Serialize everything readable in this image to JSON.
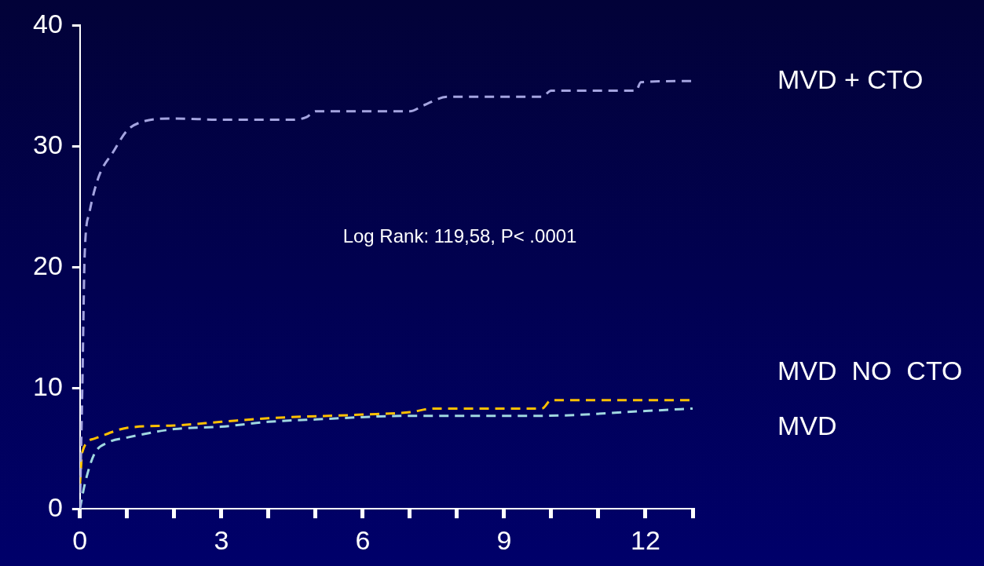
{
  "chart_data": {
    "type": "line",
    "xlim": [
      0,
      13
    ],
    "ylim": [
      0,
      40
    ],
    "xticks": [
      0,
      {
        "value": 1,
        "label": null
      },
      {
        "value": 2,
        "label": null
      },
      3,
      {
        "value": 4,
        "label": null
      },
      {
        "value": 5,
        "label": null
      },
      6,
      {
        "value": 7,
        "label": null
      },
      {
        "value": 8,
        "label": null
      },
      9,
      {
        "value": 10,
        "label": null
      },
      {
        "value": 11,
        "label": null
      },
      12,
      {
        "value": 13,
        "label": null
      }
    ],
    "yticks": [
      0,
      10,
      20,
      30,
      40
    ],
    "grid": false,
    "legend": false,
    "marker": "none",
    "line_style": "dashed",
    "annotations": [
      "Log Rank: 119,58, P< .0001"
    ],
    "series": [
      {
        "name": "MVD + CTO",
        "color": "#a4a4e0",
        "x": [
          0,
          0.05,
          0.1,
          0.2,
          0.4,
          0.7,
          1.0,
          1.3,
          2,
          3,
          4.5,
          4.8,
          5,
          7,
          7.3,
          7.8,
          9.8,
          10,
          11.8,
          11.9,
          13
        ],
        "values": [
          0,
          10,
          21,
          24.5,
          27.5,
          29.5,
          31.3,
          32.0,
          32.3,
          32.2,
          32.2,
          32.4,
          32.9,
          32.9,
          33.4,
          34.1,
          34.1,
          34.6,
          34.6,
          35.3,
          35.4
        ]
      },
      {
        "name": "MVD  NO  CTO",
        "color": "#ffc000",
        "x": [
          0,
          0.05,
          0.3,
          1,
          2,
          3,
          4,
          6,
          7,
          7.5,
          9.8,
          10,
          13
        ],
        "values": [
          2,
          4.7,
          5.8,
          6.7,
          6.9,
          7.2,
          7.5,
          7.8,
          8.0,
          8.3,
          8.3,
          9.0,
          9.0
        ]
      },
      {
        "name": "MVD",
        "color": "#a0d8e0",
        "x": [
          0,
          0.1,
          0.3,
          0.6,
          1,
          2,
          3,
          4,
          5,
          7,
          9.8,
          12,
          13
        ],
        "values": [
          0,
          2,
          4.5,
          5.5,
          5.9,
          6.6,
          6.8,
          7.2,
          7.4,
          7.7,
          7.7,
          8.1,
          8.3
        ]
      }
    ]
  }
}
